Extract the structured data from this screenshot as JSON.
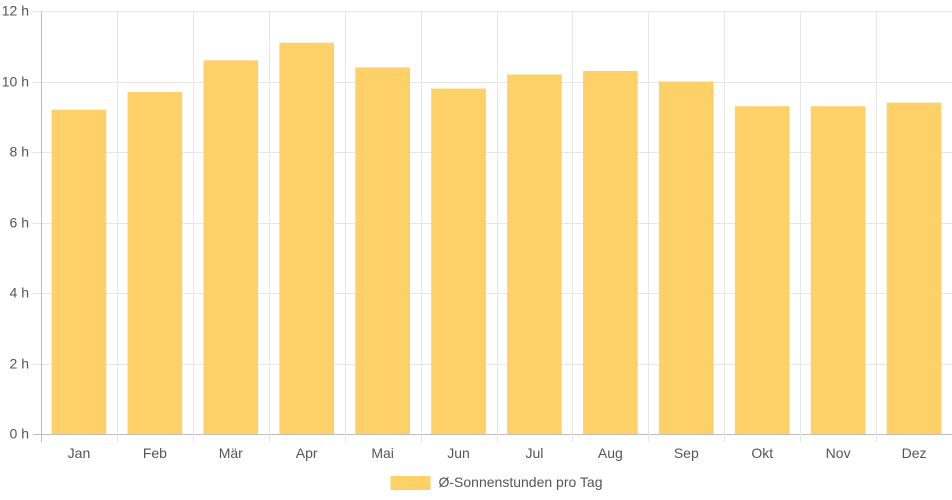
{
  "chart_data": {
    "type": "bar",
    "categories": [
      "Jan",
      "Feb",
      "Mär",
      "Apr",
      "Mai",
      "Jun",
      "Jul",
      "Aug",
      "Sep",
      "Okt",
      "Nov",
      "Dez"
    ],
    "series": [
      {
        "name": "Ø-Sonnenstunden pro Tag",
        "values": [
          9.2,
          9.7,
          10.6,
          11.1,
          10.4,
          9.8,
          10.2,
          10.3,
          10.0,
          9.3,
          9.3,
          9.4
        ],
        "color": "#FDD068"
      }
    ],
    "ylim": [
      0,
      12
    ],
    "yticks": [
      0,
      2,
      4,
      6,
      8,
      10,
      12
    ],
    "ytick_suffix": " h",
    "grid": true,
    "legend_position": "bottom-center"
  }
}
